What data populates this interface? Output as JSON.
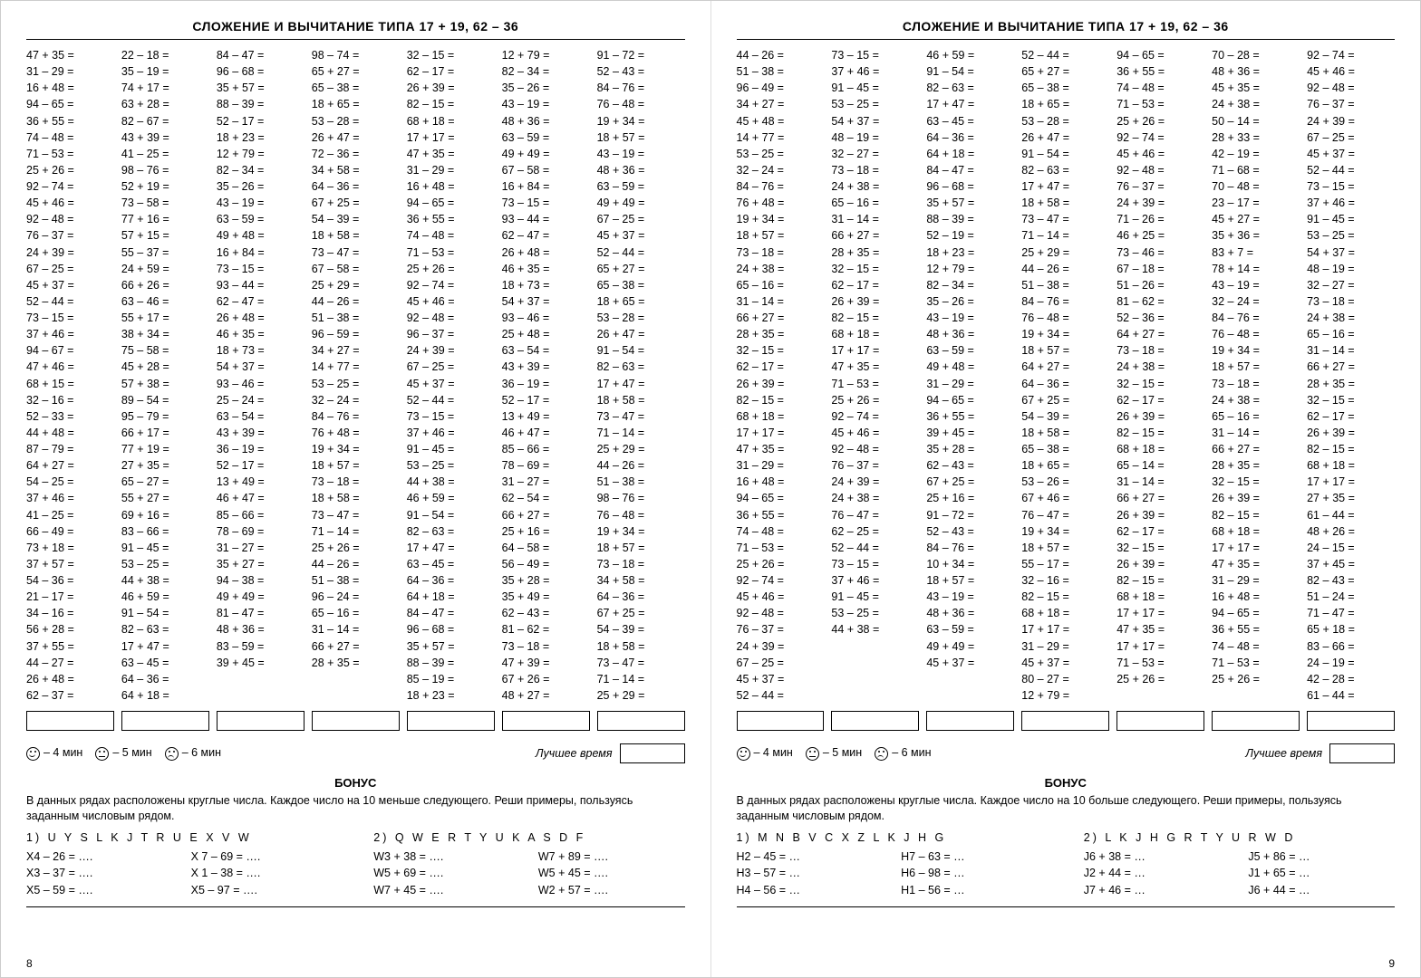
{
  "pages": [
    {
      "title": "СЛОЖЕНИЕ И ВЫЧИТАНИЕ ТИПА 17 + 19, 62 – 36",
      "columns": [
        [
          "47 + 35 =",
          "31 – 29 =",
          "16 + 48 =",
          "94 – 65 =",
          "36 + 55 =",
          "74 – 48 =",
          "71 – 53 =",
          "25 + 26 =",
          "92 – 74 =",
          "45 + 46 =",
          "92 – 48 =",
          "76 – 37 =",
          "24 + 39 =",
          "67 – 25 =",
          "45 + 37 =",
          "52 – 44 =",
          "73 – 15 =",
          "37 + 46 =",
          "94 – 67 =",
          "47 + 46 =",
          "68 + 15 =",
          "32 – 16 =",
          "52 – 33 =",
          "44 + 48 =",
          "87 – 79 =",
          "64 + 27 =",
          "54 – 25 =",
          "37 + 46 =",
          "41 – 25 =",
          "66 – 49 =",
          "73 + 18 =",
          "37 + 57 =",
          "54 – 36 =",
          "21 – 17 =",
          "34 – 16 =",
          "56 + 28 =",
          "37 + 55 =",
          "44 – 27 =",
          "26 + 48 =",
          "62 – 37 ="
        ],
        [
          "22 – 18 =",
          "35 – 19 =",
          "74 + 17 =",
          "63 + 28 =",
          "82 – 67 =",
          "43 + 39 =",
          "41 – 25 =",
          "98 – 76 =",
          "52 + 19 =",
          "73 – 58 =",
          "77 + 16 =",
          "57 + 15 =",
          "55 – 37 =",
          "24 + 59 =",
          "66 + 26 =",
          "63 – 46 =",
          "55 + 17 =",
          "38 + 34 =",
          "75 – 58 =",
          "45 + 28 =",
          "57 + 38 =",
          "89 – 54 =",
          "95 – 79 =",
          "66 + 17 =",
          "77 + 19 =",
          "27 + 35 =",
          "65 – 27 =",
          "55 + 27 =",
          "69 + 16 =",
          "83 – 66 =",
          "91 – 45 =",
          "53 – 25 =",
          "44 + 38 =",
          "46 + 59 =",
          "91 – 54 =",
          "82 – 63 =",
          "17 + 47 =",
          "63 – 45 =",
          "64 – 36 =",
          "64 + 18 ="
        ],
        [
          "84 – 47 =",
          "96 – 68 =",
          "35 + 57 =",
          "88 – 39 =",
          "52 – 17 =",
          "18 + 23 =",
          "12 + 79 =",
          "82 – 34 =",
          "35 – 26 =",
          "43 – 19 =",
          "63 – 59 =",
          "49 + 48 =",
          "16 + 84 =",
          "73 – 15 =",
          "93 – 44 =",
          "62 – 47 =",
          "26 + 48 =",
          "46 + 35 =",
          "18 + 73 =",
          "54 + 37 =",
          "93 – 46 =",
          "25 – 24 =",
          "63 – 54 =",
          "43 + 39 =",
          "36 – 19 =",
          "52 – 17 =",
          "13 + 49 =",
          "46 + 47 =",
          "85 – 66 =",
          "78 – 69 =",
          "31 – 27 =",
          "35 + 27 =",
          "94 – 38 =",
          "49 + 49 =",
          "81 – 47 =",
          "48 + 36 =",
          "83 – 59 =",
          "39 + 45 ="
        ],
        [
          "98 – 74 =",
          "65 + 27 =",
          "65 – 38 =",
          "18 + 65 =",
          "53 – 28 =",
          "26 + 47 =",
          "72 – 36 =",
          "34 + 58 =",
          "64 – 36 =",
          "67 + 25 =",
          "54 – 39 =",
          "18 + 58 =",
          "73 – 47 =",
          "67 – 58 =",
          "25 + 29 =",
          "44 – 26 =",
          "51 – 38 =",
          "96 – 59 =",
          "34 + 27 =",
          "14 + 77 =",
          "53 – 25 =",
          "32 – 24 =",
          "84 – 76 =",
          "76 + 48 =",
          "19 + 34 =",
          "18 + 57 =",
          "73 – 18 =",
          "18 + 58 =",
          "73 – 47 =",
          "71 – 14 =",
          "25 + 26 =",
          "44 – 26 =",
          "51 – 38 =",
          "96 – 24 =",
          "65 – 16 =",
          "31 – 14 =",
          "66 + 27 =",
          "28 + 35 ="
        ],
        [
          "32 – 15 =",
          "62 – 17 =",
          "26 + 39 =",
          "82 – 15 =",
          "68 + 18 =",
          "17 + 17 =",
          "47 + 35 =",
          "31 – 29 =",
          "16 + 48 =",
          "94 – 65 =",
          "36 + 55 =",
          "74 – 48 =",
          "71 – 53 =",
          "25 + 26 =",
          "92 – 74 =",
          "45 + 46 =",
          "92 – 48 =",
          "96 – 37 =",
          "24 + 39 =",
          "67 – 25 =",
          "45 + 37 =",
          "52 – 44 =",
          "73 – 15 =",
          "37 + 46 =",
          "91 – 45 =",
          "53 – 25 =",
          "44 + 38 =",
          "46 + 59 =",
          "91 – 54 =",
          "82 – 63 =",
          "17 + 47 =",
          "63 – 45 =",
          "64 – 36 =",
          "64 + 18 =",
          "84 – 47 =",
          "96 – 68 =",
          "35 + 57 =",
          "88 – 39 =",
          "85 – 19 =",
          "18 + 23 ="
        ],
        [
          "12 + 79 =",
          "82 – 34 =",
          "35 – 26 =",
          "43 – 19 =",
          "48 + 36 =",
          "63 – 59 =",
          "49 + 49 =",
          "67 – 58 =",
          "16 + 84 =",
          "73 – 15 =",
          "93 – 44 =",
          "62 – 47 =",
          "26 + 48 =",
          "46 + 35 =",
          "18 + 73 =",
          "54 + 37 =",
          "93 – 46 =",
          "25 + 48 =",
          "63 – 54 =",
          "43 + 39 =",
          "36 – 19 =",
          "52 – 17 =",
          "13 + 49 =",
          "46 + 47 =",
          "85 – 66 =",
          "78 – 69 =",
          "31 – 27 =",
          "62 – 54 =",
          "66 + 27 =",
          "25 + 16 =",
          "64 – 58 =",
          "56 – 49 =",
          "35 + 28 =",
          "35 + 49 =",
          "62 – 43 =",
          "81 – 62 =",
          "73 – 18 =",
          "47 + 39 =",
          "67 + 26 =",
          "48 + 27 ="
        ],
        [
          "91 – 72 =",
          "52 – 43 =",
          "84 – 76 =",
          "76 – 48 =",
          "19 + 34 =",
          "18 + 57 =",
          "43 – 19 =",
          "48 + 36 =",
          "63 – 59 =",
          "49 + 49 =",
          "67 – 25 =",
          "45 + 37 =",
          "52 – 44 =",
          "65 + 27 =",
          "65 – 38 =",
          "18 + 65 =",
          "53 – 28 =",
          "26 + 47 =",
          "91 – 54 =",
          "82 – 63 =",
          "17 + 47 =",
          "18 + 58 =",
          "73 – 47 =",
          "71 – 14 =",
          "25 + 29 =",
          "44 – 26 =",
          "51 – 38 =",
          "98 – 76 =",
          "76 – 48 =",
          "19 + 34 =",
          "18 + 57 =",
          "73 – 18 =",
          "34 + 58 =",
          "64 – 36 =",
          "67 + 25 =",
          "54 – 39 =",
          "18 + 58 =",
          "73 – 47 =",
          "71 – 14 =",
          "25 + 29 ="
        ]
      ],
      "timer": {
        "t1": "– 4 мин",
        "t2": "– 5 мин",
        "t3": "– 6 мин",
        "best": "Лучшее время"
      },
      "bonus": {
        "title": "БОНУС",
        "text": "В данных рядах расположены круглые числа. Каждое число на 10 меньше следующего. Реши примеры, пользуясь заданным числовым рядом.",
        "set1": {
          "head": "1) U Y S L K J T R U E X V W",
          "items": [
            "X4 – 26 = ….",
            "X 7 – 69 = ….",
            "X3 – 37 = ….",
            "X 1 – 38 = ….",
            "X5 – 59 = ….",
            "X5 – 97 = …."
          ]
        },
        "set2": {
          "head": "2) Q W E R T Y U K A S D F",
          "items": [
            "W3 + 38 = ….",
            "W7 + 89 = ….",
            "W5 + 69 = ….",
            "W5 + 45 = ….",
            "W7 + 45 = ….",
            "W2 + 57 = …."
          ]
        }
      },
      "pagenum": "8"
    },
    {
      "title": "СЛОЖЕНИЕ И ВЫЧИТАНИЕ ТИПА 17 + 19, 62 – 36",
      "columns": [
        [
          "44 – 26 =",
          "51 – 38 =",
          "96 – 49 =",
          "34 + 27 =",
          "45 + 48 =",
          "14 + 77 =",
          "53 – 25 =",
          "32 – 24 =",
          "84 – 76 =",
          "76 + 48 =",
          "19 + 34 =",
          "18 + 57 =",
          "73 – 18 =",
          "24 + 38 =",
          "65 – 16 =",
          "31 – 14 =",
          "66 + 27 =",
          "28 + 35 =",
          "32 – 15 =",
          "62 – 17 =",
          "26 + 39 =",
          "82 – 15 =",
          "68 + 18 =",
          "17 + 17 =",
          "47 + 35 =",
          "31 – 29 =",
          "16 + 48 =",
          "94 – 65 =",
          "36 + 55 =",
          "74 – 48 =",
          "71 – 53 =",
          "25 + 26 =",
          "92 – 74 =",
          "45 + 46 =",
          "92 – 48 =",
          "76 – 37 =",
          "24 + 39 =",
          "67 – 25 =",
          "45 + 37 =",
          "52 – 44 ="
        ],
        [
          "73 – 15 =",
          "37 + 46 =",
          "91 – 45 =",
          "53 – 25 =",
          "54 + 37 =",
          "48 – 19 =",
          "32 – 27 =",
          "73 – 18 =",
          "24 + 38 =",
          "65 – 16 =",
          "31 – 14 =",
          "66 + 27 =",
          "28 + 35 =",
          "32 – 15 =",
          "62 – 17 =",
          "26 + 39 =",
          "82 – 15 =",
          "68 + 18 =",
          "17 + 17 =",
          "47 + 35 =",
          "71 – 53 =",
          "25 + 26 =",
          "92 – 74 =",
          "45 + 46 =",
          "92 – 48 =",
          "76 – 37 =",
          "24 + 39 =",
          "24 + 38 =",
          "76 – 47 =",
          "62 – 25 =",
          "52 – 44 =",
          "73 – 15 =",
          "37 + 46 =",
          "91 – 45 =",
          "53 – 25 =",
          "44 + 38 ="
        ],
        [
          "46 + 59 =",
          "91 – 54 =",
          "82 – 63 =",
          "17 + 47 =",
          "63 – 45 =",
          "64 – 36 =",
          "64 + 18 =",
          "84 – 47 =",
          "96 – 68 =",
          "35 + 57 =",
          "88 – 39 =",
          "52 – 19 =",
          "18 + 23 =",
          "12 + 79 =",
          "82 – 34 =",
          "35 – 26 =",
          "43 – 19 =",
          "48 + 36 =",
          "63 – 59 =",
          "49 + 48 =",
          "31 – 29 =",
          "94 – 65 =",
          "36 + 55 =",
          "39 + 45 =",
          "35 + 28 =",
          "62 – 43 =",
          "67 + 25 =",
          "25 + 16 =",
          "91 – 72 =",
          "52 – 43 =",
          "84 – 76 =",
          "10 + 34 =",
          "18 + 57 =",
          "43 – 19 =",
          "48 + 36 =",
          "63 – 59 =",
          "49 + 49 =",
          "45 + 37 ="
        ],
        [
          "52 – 44 =",
          "65 + 27 =",
          "65 – 38 =",
          "18 + 65 =",
          "53 – 28 =",
          "26 + 47 =",
          "91 – 54 =",
          "82 – 63 =",
          "17 + 47 =",
          "18 + 58 =",
          "73 – 47 =",
          "71 – 14 =",
          "25 + 29 =",
          "44 – 26 =",
          "51 – 38 =",
          "84 – 76 =",
          "76 – 48 =",
          "19 + 34 =",
          "18 + 57 =",
          "64 + 27 =",
          "64 – 36 =",
          "67 + 25 =",
          "54 – 39 =",
          "18 + 58 =",
          "65 – 38 =",
          "18 + 65 =",
          "53 – 26 =",
          "67 + 46 =",
          "76 – 47 =",
          "19 + 34 =",
          "18 + 57 =",
          "55 – 17 =",
          "32 – 16 =",
          "82 – 15 =",
          "68 + 18 =",
          "17 + 17 =",
          "31 – 29 =",
          "45 + 37 =",
          "80 – 27 =",
          "12 + 79 ="
        ],
        [
          "94 – 65 =",
          "36 + 55 =",
          "74 – 48 =",
          "71 – 53 =",
          "25 + 26 =",
          "92 – 74 =",
          "45 + 46 =",
          "92 – 48 =",
          "76 – 37 =",
          "24 + 39 =",
          "71 – 26 =",
          "46 + 25 =",
          "73 – 46 =",
          "67 – 18 =",
          "51 – 26 =",
          "81 – 62 =",
          "52 – 36 =",
          "64 + 27 =",
          "73 – 18 =",
          "24 + 38 =",
          "32 – 15 =",
          "62 – 17 =",
          "26 + 39 =",
          "82 – 15 =",
          "68 + 18 =",
          "65 – 14 =",
          "31 – 14 =",
          "66 + 27 =",
          "26 + 39 =",
          "62 – 17 =",
          "32 – 15 =",
          "26 + 39 =",
          "82 – 15 =",
          "68 + 18 =",
          "17 + 17 =",
          "47 + 35 =",
          "17 + 17 =",
          "71 – 53 =",
          "25 + 26 ="
        ],
        [
          "70 – 28 =",
          "48 + 36 =",
          "45 + 35 =",
          "24 + 38 =",
          "50 – 14 =",
          "28 + 33 =",
          "42 – 19 =",
          "71 – 68 =",
          "70 – 48 =",
          "23 – 17 =",
          "45 + 27 =",
          "35 + 36 =",
          "83 +  7 =",
          "78 + 14 =",
          "43 – 19 =",
          "32 – 24 =",
          "84 – 76 =",
          "76 – 48 =",
          "19 + 34 =",
          "18 + 57 =",
          "73 – 18 =",
          "24 + 38 =",
          "65 – 16 =",
          "31 – 14 =",
          "66 + 27 =",
          "28 + 35 =",
          "32 – 15 =",
          "26 + 39 =",
          "82 – 15 =",
          "68 + 18 =",
          "17 + 17 =",
          "47 + 35 =",
          "31 – 29 =",
          "16 + 48 =",
          "94 – 65 =",
          "36 + 55 =",
          "74 – 48 =",
          "71 – 53 =",
          "25 + 26 ="
        ],
        [
          "92 – 74 =",
          "45 + 46 =",
          "92 – 48 =",
          "76 – 37 =",
          "24 + 39 =",
          "67 – 25 =",
          "45 + 37 =",
          "52 – 44 =",
          "73 – 15 =",
          "37 + 46 =",
          "91 – 45 =",
          "53 – 25 =",
          "54 + 37 =",
          "48 – 19 =",
          "32 – 27 =",
          "73 – 18 =",
          "24 + 38 =",
          "65 – 16 =",
          "31 – 14 =",
          "66 + 27 =",
          "28 + 35 =",
          "32 – 15 =",
          "62 – 17 =",
          "26 + 39 =",
          "82 – 15 =",
          "68 + 18 =",
          "17 + 17 =",
          "27 + 35 =",
          "61 – 44 =",
          "48 + 26 =",
          "24 – 15 =",
          "37 + 45 =",
          "82 – 43 =",
          "51 – 24 =",
          "71 – 47 =",
          "65 + 18 =",
          "83 – 66 =",
          "24 – 19 =",
          "42 – 28 =",
          "61 – 44 ="
        ]
      ],
      "timer": {
        "t1": "– 4 мин",
        "t2": "– 5 мин",
        "t3": "– 6 мин",
        "best": "Лучшее время"
      },
      "bonus": {
        "title": "БОНУС",
        "text": "В данных рядах расположены круглые числа. Каждое число на 10 больше следующего. Реши примеры, пользуясь заданным числовым рядом.",
        "set1": {
          "head": "1) M N B V C X Z L K J H G",
          "items": [
            "H2 – 45 = …",
            "H7 – 63 = …",
            "H3 – 57 = …",
            "H6 – 98 = …",
            "H4 – 56 = …",
            "H1 – 56 = …"
          ]
        },
        "set2": {
          "head": "2) L K J H G R T Y U R W D",
          "items": [
            "J6 + 38 = …",
            "J5 + 86 = …",
            "J2 + 44 = …",
            "J1 + 65 = …",
            "J7 + 46 = …",
            "J6 + 44 = …"
          ]
        }
      },
      "pagenum": "9"
    }
  ]
}
